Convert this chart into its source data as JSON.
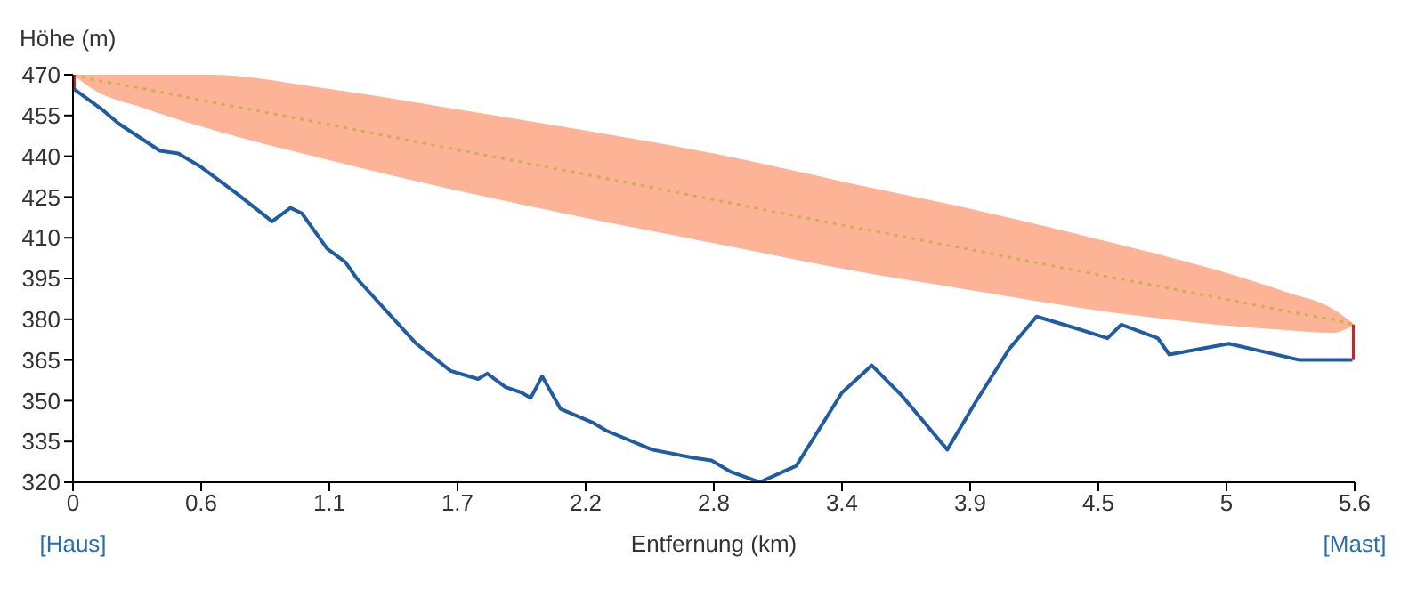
{
  "chart_data": {
    "type": "line",
    "xlabel": "Entfernung (km)",
    "ylabel": "Höhe (m)",
    "annotations": [
      "[Haus]",
      "[Mast]"
    ],
    "xlim": [
      0,
      5.6
    ],
    "ylim": [
      320,
      470
    ],
    "xticks": [
      0,
      {
        "value": 0.56,
        "label": "0.6"
      },
      {
        "value": 1.12,
        "label": "1.1"
      },
      {
        "value": 1.68,
        "label": "1.7"
      },
      {
        "value": 2.24,
        "label": "2.2"
      },
      2.8,
      {
        "value": 3.36,
        "label": "3.4"
      },
      {
        "value": 3.92,
        "label": "3.9"
      },
      {
        "value": 4.48,
        "label": "4.5"
      },
      {
        "value": 5.04,
        "label": "5"
      },
      5.6
    ],
    "yticks": [
      320,
      335,
      350,
      365,
      380,
      395,
      410,
      425,
      440,
      455,
      470
    ],
    "grid": false,
    "marker": "none",
    "series": [
      {
        "color": "#c9b24a",
        "line_style": "dotted",
        "x": [
          0,
          0.1,
          0.3,
          0.6,
          1.1,
          1.7,
          2.2,
          2.8,
          3.4,
          3.9,
          4.5,
          5.0,
          5.3,
          5.5,
          5.6
        ],
        "values": [
          470,
          468,
          465,
          460,
          452,
          442,
          434,
          424,
          414,
          406,
          396,
          388,
          383,
          380,
          378
        ],
        "lower": [
          470,
          464,
          458,
          450,
          439,
          427,
          418,
          408,
          398,
          391,
          383,
          378,
          376,
          375,
          378
        ],
        "upper": [
          470,
          470,
          470,
          470,
          465,
          457,
          450,
          441,
          430,
          421,
          409,
          398,
          390,
          384,
          378
        ]
      },
      {
        "color": "#1f5ca6",
        "line_style": "solid",
        "x": [
          0,
          0.13,
          0.2,
          0.38,
          0.46,
          0.56,
          0.72,
          0.87,
          0.95,
          1.0,
          1.11,
          1.19,
          1.24,
          1.5,
          1.65,
          1.77,
          1.81,
          1.89,
          1.96,
          2.0,
          2.05,
          2.13,
          2.27,
          2.33,
          2.53,
          2.71,
          2.79,
          2.87,
          3.0,
          3.16,
          3.36,
          3.49,
          3.62,
          3.82,
          3.94,
          4.09,
          4.21,
          4.37,
          4.52,
          4.58,
          4.74,
          4.79,
          5.05,
          5.36,
          5.59
        ],
        "values": [
          465,
          457,
          452,
          442,
          441,
          436,
          426,
          416,
          421,
          419,
          406,
          401,
          395,
          371,
          361,
          358,
          360,
          355,
          353,
          351,
          359,
          347,
          342,
          339,
          332,
          329,
          328,
          324,
          320,
          326,
          353,
          363,
          352,
          332,
          349,
          369,
          381,
          377,
          373,
          378,
          373,
          367,
          371,
          365,
          365
        ]
      },
      {
        "color": "#e31a1c",
        "line_style": "solid",
        "x": [
          0,
          0
        ],
        "values": [
          465,
          470
        ]
      },
      {
        "color": "#e31a1c",
        "line_style": "solid",
        "x": [
          5.6,
          5.6
        ],
        "values": [
          365,
          378
        ]
      }
    ]
  }
}
